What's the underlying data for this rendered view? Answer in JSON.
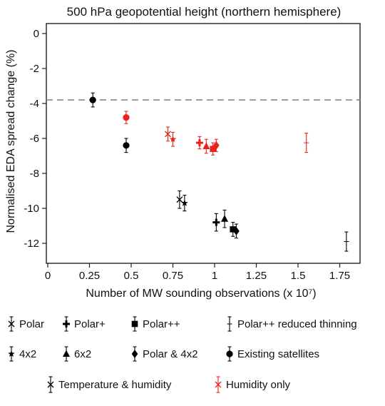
{
  "chart_data": {
    "type": "scatter",
    "title": "500 hPa geopotential height (northern hemisphere)",
    "xlabel": "Number of MW sounding observations (x 10⁷)",
    "ylabel": "Normalised EDA spread change (%)",
    "xlim": [
      0,
      1.85
    ],
    "ylim": [
      -13,
      0.6
    ],
    "xticks": [
      0,
      0.25,
      0.5,
      0.75,
      1,
      1.25,
      1.5,
      1.75
    ],
    "xtick_labels": [
      "0",
      "0.25",
      "0.5",
      "0.75",
      "1",
      "1.25",
      "1.5",
      "1.75"
    ],
    "yticks": [
      0,
      -2,
      -4,
      -6,
      -8,
      -10,
      -12
    ],
    "ytick_labels": [
      "0",
      "-2",
      "-4",
      "-6",
      "-8",
      "-10",
      "-12"
    ],
    "reference_line": {
      "y": -3.8,
      "style": "dashed"
    },
    "colors": {
      "temperature_humidity": "#000000",
      "humidity_only": "#e8231c",
      "reference": "#888888"
    },
    "series": [
      {
        "name": "Existing satellites",
        "marker": "circle",
        "group": "temperature_humidity",
        "points": [
          {
            "x": 0.27,
            "y": -3.8,
            "err": 0.4
          },
          {
            "x": 0.47,
            "y": -6.4,
            "err": 0.4
          }
        ]
      },
      {
        "name": "Existing satellites",
        "marker": "circle",
        "group": "humidity_only",
        "points": [
          {
            "x": 0.47,
            "y": -4.8,
            "err": 0.35
          }
        ]
      },
      {
        "name": "Polar",
        "marker": "x",
        "group": "temperature_humidity",
        "points": [
          {
            "x": 0.79,
            "y": -9.5,
            "err": 0.5
          }
        ]
      },
      {
        "name": "Polar",
        "marker": "x",
        "group": "humidity_only",
        "points": [
          {
            "x": 0.72,
            "y": -5.75,
            "err": 0.4
          }
        ]
      },
      {
        "name": "4x2",
        "marker": "star",
        "group": "temperature_humidity",
        "points": [
          {
            "x": 0.82,
            "y": -9.7,
            "err": 0.45
          }
        ]
      },
      {
        "name": "4x2",
        "marker": "star",
        "group": "humidity_only",
        "points": [
          {
            "x": 0.75,
            "y": -6.05,
            "err": 0.4
          }
        ]
      },
      {
        "name": "Polar+",
        "marker": "plus",
        "group": "temperature_humidity",
        "points": [
          {
            "x": 1.01,
            "y": -10.8,
            "err": 0.5
          }
        ]
      },
      {
        "name": "Polar+",
        "marker": "plus",
        "group": "humidity_only",
        "points": [
          {
            "x": 0.91,
            "y": -6.25,
            "err": 0.35
          }
        ]
      },
      {
        "name": "6x2",
        "marker": "triangle",
        "group": "temperature_humidity",
        "points": [
          {
            "x": 1.06,
            "y": -10.6,
            "err": 0.5
          }
        ]
      },
      {
        "name": "6x2",
        "marker": "triangle",
        "group": "humidity_only",
        "points": [
          {
            "x": 0.95,
            "y": -6.45,
            "err": 0.4
          }
        ]
      },
      {
        "name": "Polar++",
        "marker": "square",
        "group": "temperature_humidity",
        "points": [
          {
            "x": 1.11,
            "y": -11.2,
            "err": 0.4
          }
        ]
      },
      {
        "name": "Polar++",
        "marker": "square",
        "group": "humidity_only",
        "points": [
          {
            "x": 0.99,
            "y": -6.6,
            "err": 0.35
          }
        ]
      },
      {
        "name": "Polar & 4x2",
        "marker": "diamond",
        "group": "temperature_humidity",
        "points": [
          {
            "x": 1.13,
            "y": -11.3,
            "err": 0.4
          }
        ]
      },
      {
        "name": "Polar & 4x2",
        "marker": "diamond",
        "group": "humidity_only",
        "points": [
          {
            "x": 1.01,
            "y": -6.4,
            "err": 0.35
          }
        ]
      },
      {
        "name": "Polar++ reduced thinning",
        "marker": "thin",
        "group": "temperature_humidity",
        "points": [
          {
            "x": 1.79,
            "y": -11.9,
            "err": 0.55
          }
        ]
      },
      {
        "name": "Polar++ reduced thinning",
        "marker": "thin",
        "group": "humidity_only",
        "points": [
          {
            "x": 1.55,
            "y": -6.25,
            "err": 0.55
          }
        ]
      }
    ],
    "legend": {
      "placement": "below",
      "marker_entries": [
        {
          "marker": "x",
          "label": "Polar"
        },
        {
          "marker": "plus",
          "label": "Polar+"
        },
        {
          "marker": "square",
          "label": "Polar++"
        },
        {
          "marker": "thin",
          "label": "Polar++ reduced thinning"
        },
        {
          "marker": "star",
          "label": "4x2"
        },
        {
          "marker": "triangle",
          "label": "6x2"
        },
        {
          "marker": "diamond",
          "label": "Polar & 4x2"
        },
        {
          "marker": "circle",
          "label": "Existing satellites"
        }
      ],
      "color_entries": [
        {
          "group": "temperature_humidity",
          "label": "Temperature & humidity"
        },
        {
          "group": "humidity_only",
          "label": "Humidity only"
        }
      ]
    }
  }
}
